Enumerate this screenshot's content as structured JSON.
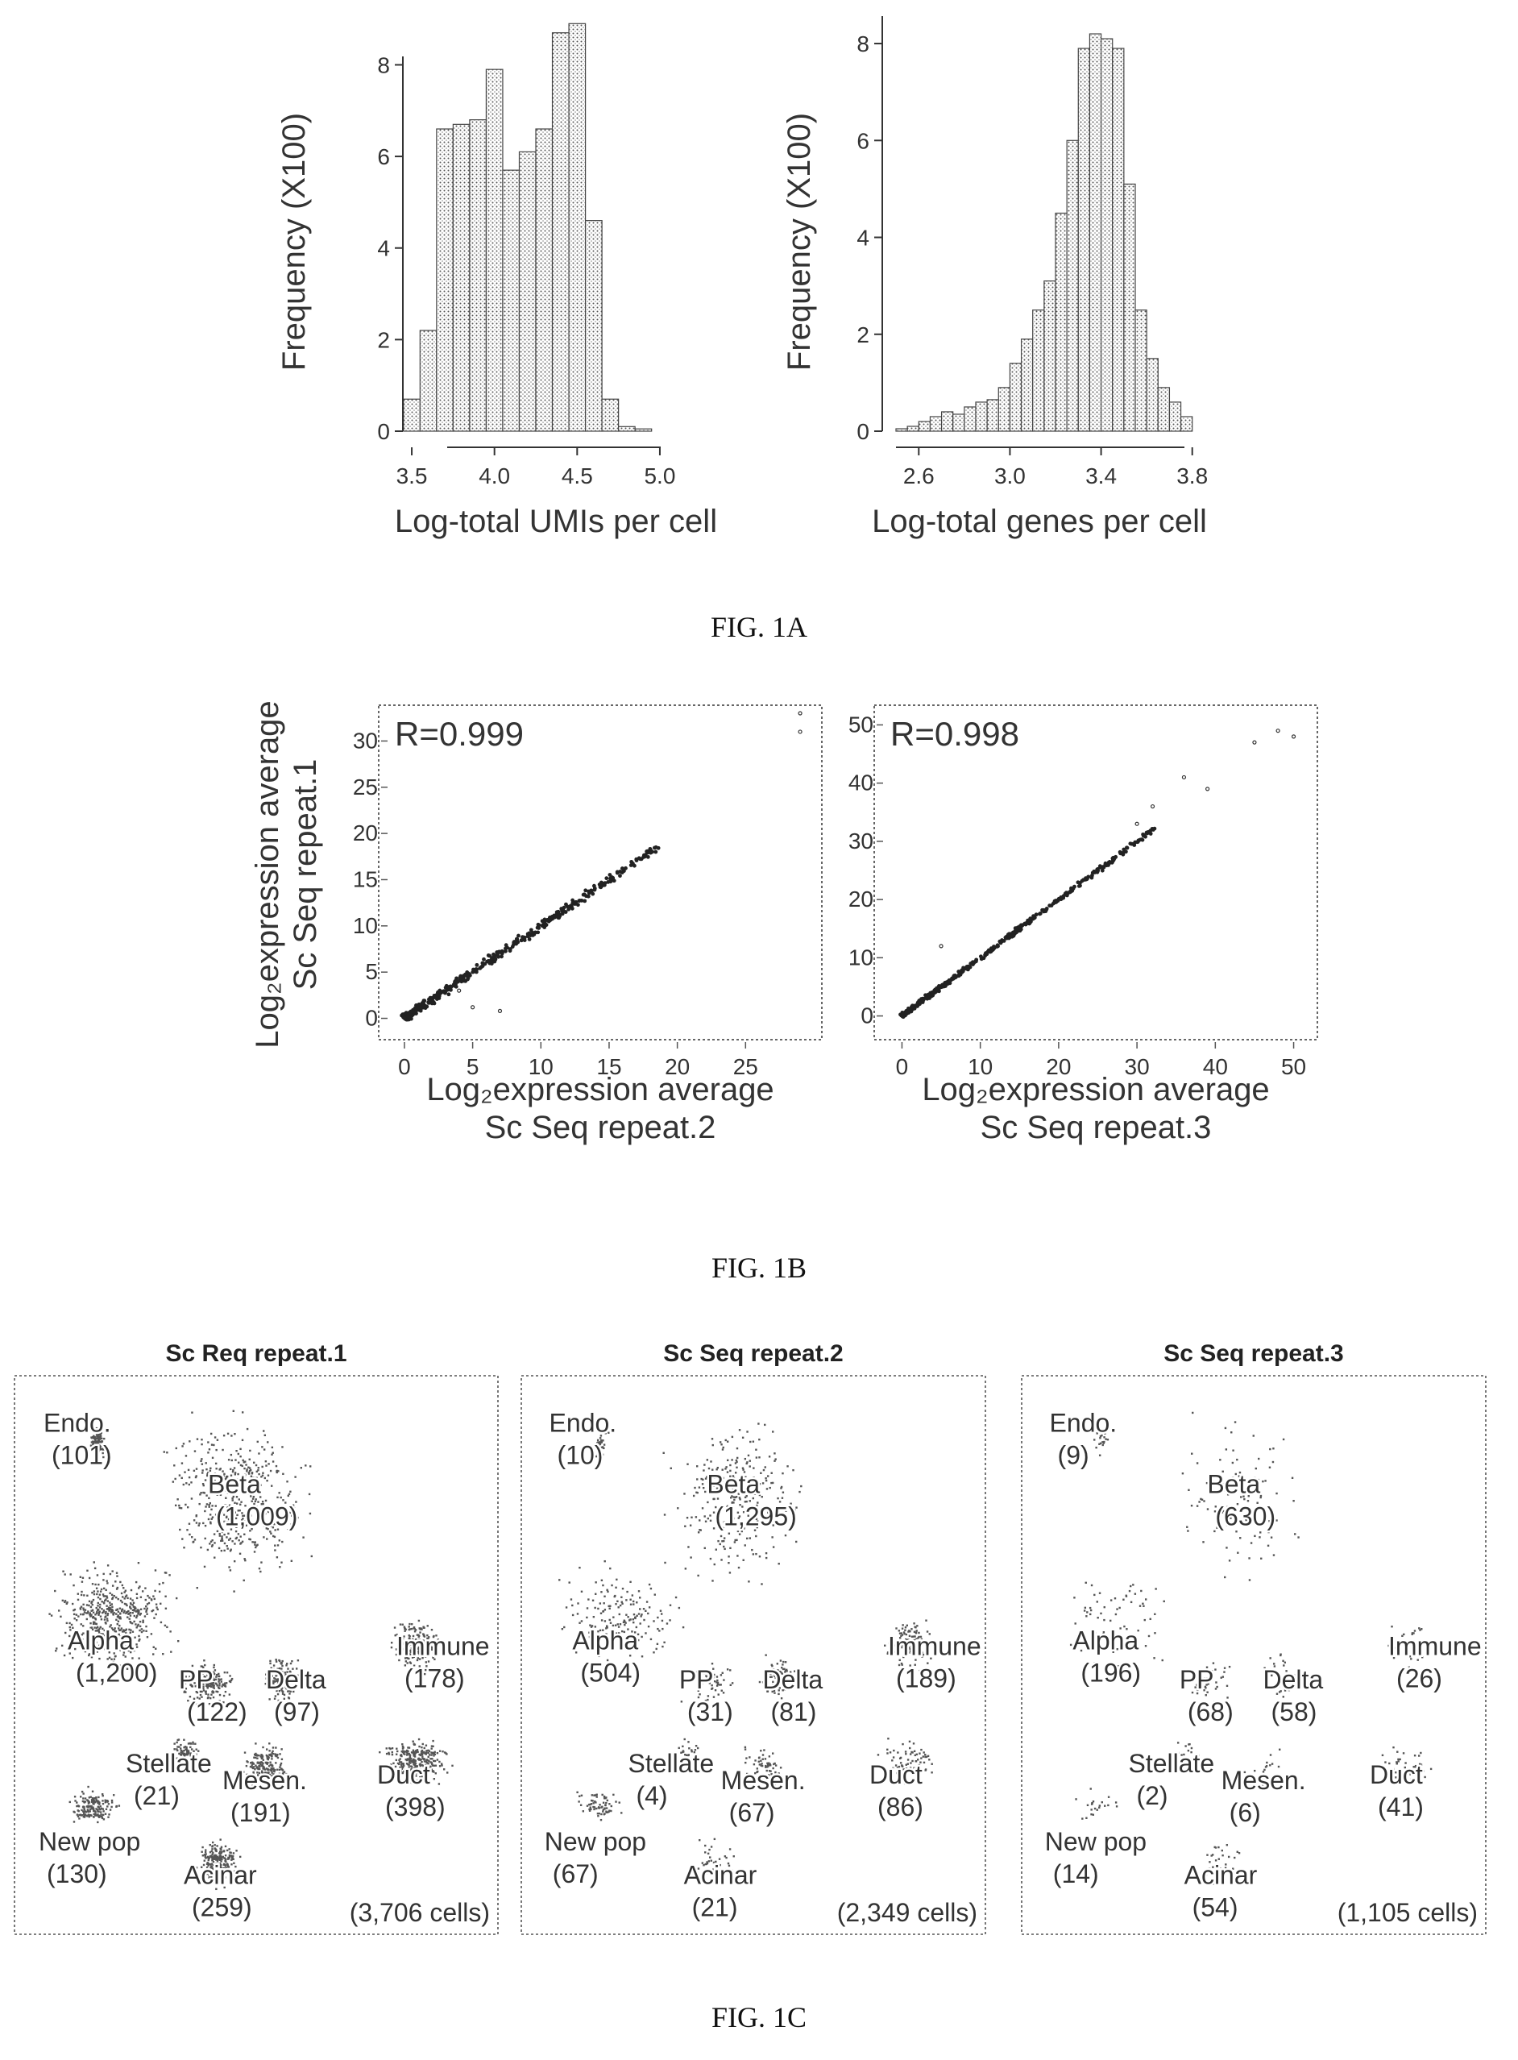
{
  "figures": {
    "a": "FIG. 1A",
    "b": "FIG. 1B",
    "c": "FIG. 1C"
  },
  "chart_data": [
    {
      "type": "bar",
      "id": "hist-umis",
      "xlabel": "Log-total UMIs per cell",
      "ylabel": "Frequency (X100)",
      "x_ticks": [
        "3.5",
        "4.0",
        "4.5",
        "5.0"
      ],
      "y_ticks": [
        "0",
        "2",
        "4",
        "6",
        "8"
      ],
      "xlim": [
        3.3,
        5.2
      ],
      "ylim": [
        0,
        8.8
      ],
      "bin_start": 3.45,
      "bin_width": 0.1,
      "values": [
        0.7,
        2.2,
        6.6,
        6.7,
        6.8,
        7.9,
        5.7,
        6.1,
        6.6,
        8.7,
        8.9,
        4.6,
        0.7,
        0.1,
        0.05
      ]
    },
    {
      "type": "bar",
      "id": "hist-genes",
      "xlabel": "Log-total genes per cell",
      "ylabel": "Frequency (X100)",
      "x_ticks": [
        "2.6",
        "3.0",
        "3.4",
        "3.8"
      ],
      "y_ticks": [
        "0",
        "2",
        "4",
        "6",
        "8"
      ],
      "xlim": [
        2.5,
        3.9
      ],
      "ylim": [
        0,
        8.4
      ],
      "bin_start": 2.5,
      "bin_width": 0.05,
      "values": [
        0.05,
        0.1,
        0.2,
        0.3,
        0.4,
        0.35,
        0.5,
        0.6,
        0.65,
        0.9,
        1.4,
        1.9,
        2.5,
        3.1,
        4.5,
        6.0,
        7.9,
        8.2,
        8.1,
        7.9,
        5.1,
        2.5,
        1.5,
        0.9,
        0.6,
        0.3
      ]
    },
    {
      "type": "scatter",
      "id": "scatter-rep2",
      "annotation": "R=0.999",
      "ylabel": [
        "Log₂expression average",
        "Sc Seq repeat.1"
      ],
      "xlabel": [
        "Log₂expression average",
        "Sc Seq repeat.2"
      ],
      "x_ticks": [
        "0",
        "5",
        "10",
        "15",
        "20",
        "25"
      ],
      "y_ticks": [
        "0",
        "5",
        "10",
        "15",
        "20",
        "25",
        "30"
      ],
      "xlim": [
        -1,
        30
      ],
      "ylim": [
        -1,
        33
      ],
      "outliers": [
        [
          5,
          1.2
        ],
        [
          7,
          0.8
        ],
        [
          4,
          3
        ],
        [
          29,
          31
        ],
        [
          29,
          33
        ]
      ]
    },
    {
      "type": "scatter",
      "id": "scatter-rep3",
      "annotation": "R=0.998",
      "xlabel": [
        "Log₂expression average",
        "Sc Seq repeat.3"
      ],
      "x_ticks": [
        "0",
        "10",
        "20",
        "30",
        "40",
        "50"
      ],
      "y_ticks": [
        "0",
        "10",
        "20",
        "30",
        "40",
        "50"
      ],
      "xlim": [
        -2,
        52
      ],
      "ylim": [
        -2,
        52
      ],
      "outliers": [
        [
          5,
          12
        ],
        [
          30,
          33
        ],
        [
          32,
          36
        ],
        [
          39,
          39
        ],
        [
          45,
          47
        ],
        [
          48,
          49
        ],
        [
          50,
          48
        ],
        [
          36,
          41
        ]
      ]
    },
    {
      "type": "scatter",
      "id": "tsne-panels",
      "panels": [
        {
          "title": "Sc Req repeat.1",
          "total": "(3,706 cells)",
          "labels": [
            {
              "name": "Endo.",
              "count": "(101)"
            },
            {
              "name": "Beta",
              "count": "(1,009)"
            },
            {
              "name": "Alpha",
              "count": "(1,200)"
            },
            {
              "name": "PP",
              "count": "(122)"
            },
            {
              "name": "Delta",
              "count": "(97)"
            },
            {
              "name": "Immune",
              "count": "(178)"
            },
            {
              "name": "Stellate",
              "count": "(21)"
            },
            {
              "name": "Mesen.",
              "count": "(191)"
            },
            {
              "name": "Duct",
              "count": "(398)"
            },
            {
              "name": "New pop",
              "count": "(130)"
            },
            {
              "name": "Acinar",
              "count": "(259)"
            }
          ]
        },
        {
          "title": "Sc Seq repeat.2",
          "total": "(2,349 cells)",
          "labels": [
            {
              "name": "Endo.",
              "count": "(10)"
            },
            {
              "name": "Beta",
              "count": "(1,295)"
            },
            {
              "name": "Alpha",
              "count": "(504)"
            },
            {
              "name": "PP",
              "count": "(31)"
            },
            {
              "name": "Delta",
              "count": "(81)"
            },
            {
              "name": "Immune",
              "count": "(189)"
            },
            {
              "name": "Stellate",
              "count": "(4)"
            },
            {
              "name": "Mesen.",
              "count": "(67)"
            },
            {
              "name": "Duct",
              "count": "(86)"
            },
            {
              "name": "New pop",
              "count": "(67)"
            },
            {
              "name": "Acinar",
              "count": "(21)"
            }
          ]
        },
        {
          "title": "Sc Seq repeat.3",
          "total": "(1,105 cells)",
          "labels": [
            {
              "name": "Endo.",
              "count": "(9)"
            },
            {
              "name": "Beta",
              "count": "(630)"
            },
            {
              "name": "Alpha",
              "count": "(196)"
            },
            {
              "name": "PP",
              "count": "(68)"
            },
            {
              "name": "Delta",
              "count": "(58)"
            },
            {
              "name": "Immune",
              "count": "(26)"
            },
            {
              "name": "Stellate",
              "count": "(2)"
            },
            {
              "name": "Mesen.",
              "count": "(6)"
            },
            {
              "name": "Duct",
              "count": "(41)"
            },
            {
              "name": "New pop",
              "count": "(14)"
            },
            {
              "name": "Acinar",
              "count": "(54)"
            }
          ]
        }
      ]
    }
  ]
}
